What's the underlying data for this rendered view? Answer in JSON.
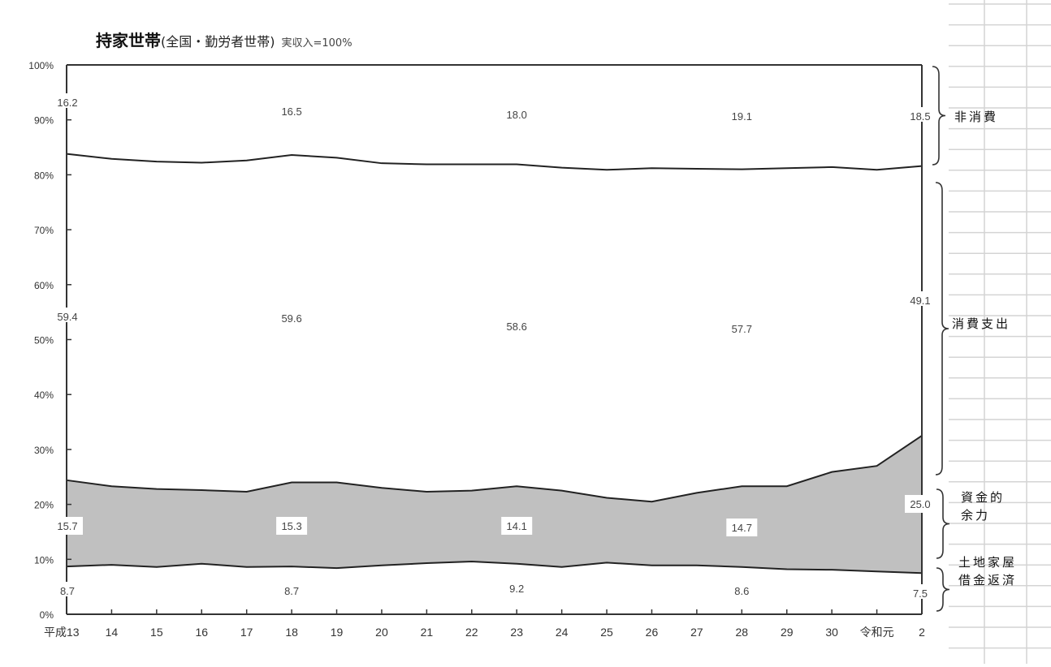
{
  "title": {
    "main": "持家世帯",
    "sub": "(全国・勤労者世帯)",
    "note": "実収入=100%"
  },
  "right_labels": {
    "non_consumption": "非消費",
    "consumption": "消費支出",
    "surplus_line1": "資金的",
    "surplus_line2": "余力",
    "loan_line1": "土地家屋",
    "loan_line2": "借金返済"
  },
  "chart_data": {
    "type": "area",
    "title": "持家世帯(全国・勤労者世帯) 実収入=100%",
    "xlabel": "",
    "ylabel": "",
    "ylim": [
      0,
      100
    ],
    "yticks": [
      "0%",
      "10%",
      "20%",
      "30%",
      "40%",
      "50%",
      "60%",
      "70%",
      "80%",
      "90%",
      "100%"
    ],
    "categories": [
      "平成13",
      "14",
      "15",
      "16",
      "17",
      "18",
      "19",
      "20",
      "21",
      "22",
      "23",
      "24",
      "25",
      "26",
      "27",
      "28",
      "29",
      "30",
      "令和元",
      "2"
    ],
    "series": [
      {
        "name": "土地家屋借金返済",
        "values": [
          8.7,
          9.0,
          8.6,
          9.2,
          8.6,
          8.7,
          8.4,
          8.9,
          9.3,
          9.6,
          9.2,
          8.6,
          9.4,
          8.9,
          8.9,
          8.6,
          8.2,
          8.1,
          7.8,
          7.5
        ]
      },
      {
        "name": "資金的余力",
        "values": [
          15.7,
          14.3,
          14.2,
          13.4,
          13.7,
          15.3,
          15.6,
          14.1,
          13.0,
          12.9,
          14.1,
          13.9,
          11.8,
          11.6,
          13.2,
          14.7,
          15.1,
          17.8,
          19.2,
          25.0
        ]
      },
      {
        "name": "消費支出",
        "values": [
          59.4,
          59.6,
          59.6,
          59.6,
          60.3,
          59.6,
          59.1,
          59.1,
          59.6,
          59.4,
          58.6,
          58.8,
          59.7,
          60.7,
          59.0,
          57.7,
          57.9,
          55.5,
          53.9,
          49.1
        ]
      },
      {
        "name": "非消費",
        "values": [
          16.2,
          17.1,
          17.6,
          17.8,
          17.4,
          16.5,
          16.9,
          17.9,
          18.1,
          18.1,
          18.0,
          18.7,
          19.1,
          18.8,
          18.9,
          19.1,
          18.8,
          18.6,
          19.1,
          18.5
        ]
      }
    ],
    "data_labels": [
      {
        "series": "非消費",
        "points": [
          [
            "平成13",
            "16.2"
          ],
          [
            "18",
            "16.5"
          ],
          [
            "23",
            "18.0"
          ],
          [
            "28",
            "19.1"
          ],
          [
            "2",
            "18.5"
          ]
        ]
      },
      {
        "series": "消費支出",
        "points": [
          [
            "平成13",
            "59.4"
          ],
          [
            "18",
            "59.6"
          ],
          [
            "23",
            "58.6"
          ],
          [
            "28",
            "57.7"
          ],
          [
            "2",
            "49.1"
          ]
        ]
      },
      {
        "series": "資金的余力",
        "points": [
          [
            "平成13",
            "15.7"
          ],
          [
            "18",
            "15.3"
          ],
          [
            "23",
            "14.1"
          ],
          [
            "28",
            "14.7"
          ],
          [
            "2",
            "25.0"
          ]
        ]
      },
      {
        "series": "土地家屋借金返済",
        "points": [
          [
            "平成13",
            "8.7"
          ],
          [
            "18",
            "8.7"
          ],
          [
            "23",
            "9.2"
          ],
          [
            "28",
            "8.6"
          ],
          [
            "2",
            "7.5"
          ]
        ]
      }
    ],
    "colors": {
      "surplus_fill": "#c0c0c0",
      "line": "#222222"
    },
    "grid": false,
    "legend": "right-side braces"
  }
}
